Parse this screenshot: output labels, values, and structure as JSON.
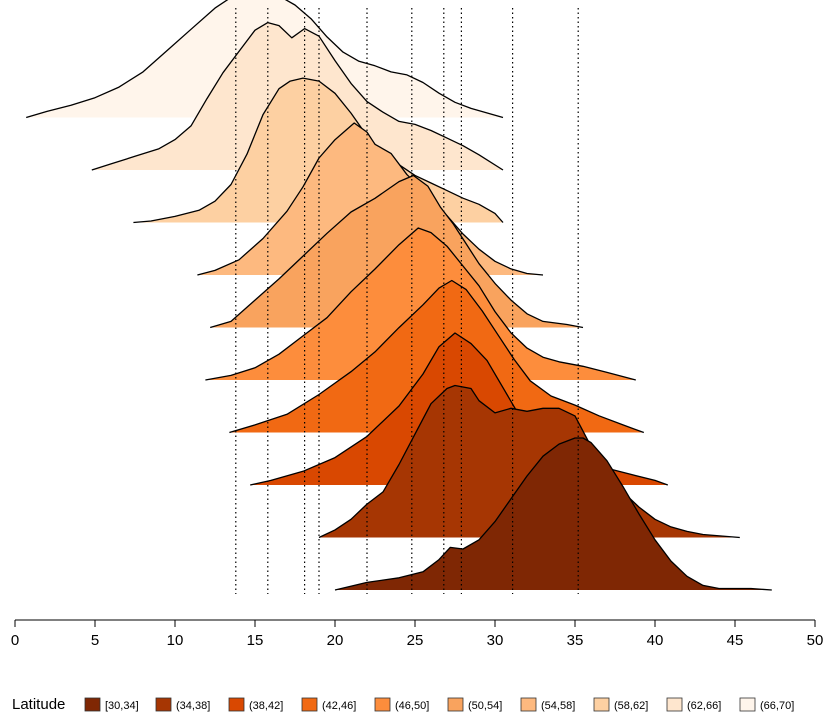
{
  "chart_data": {
    "type": "area",
    "subtype": "ridgeline",
    "title": "",
    "xlabel": "",
    "ylabel": "",
    "xlim": [
      0,
      50
    ],
    "x_ticks": [
      "0",
      "5",
      "10",
      "15",
      "20",
      "25",
      "30",
      "35",
      "40",
      "45",
      "50"
    ],
    "legend": {
      "title": "Latitude",
      "position": "bottom",
      "entries": [
        "[30,34]",
        "(34,38]",
        "(38,42]",
        "(42,46]",
        "(46,50]",
        "(50,54]",
        "(54,58]",
        "(58,62]",
        "(62,66]",
        "(66,70]"
      ]
    },
    "colors": [
      "#7f2704",
      "#a63603",
      "#d94801",
      "#f16913",
      "#fd8d3c",
      "#f9a35e",
      "#fdb97f",
      "#fdd0a2",
      "#fee6ce",
      "#fff5eb"
    ],
    "reference_lines_x": [
      13.8,
      15.8,
      18.1,
      19.0,
      22.0,
      24.8,
      26.8,
      27.9,
      31.1,
      35.2
    ],
    "series": [
      {
        "name": "[30,34]",
        "peak": 35.2,
        "points": [
          [
            20.0,
            0.0
          ],
          [
            22.0,
            0.05
          ],
          [
            24.0,
            0.08
          ],
          [
            25.5,
            0.12
          ],
          [
            26.5,
            0.2
          ],
          [
            27.2,
            0.28
          ],
          [
            28.0,
            0.27
          ],
          [
            29.0,
            0.33
          ],
          [
            30.0,
            0.45
          ],
          [
            31.0,
            0.6
          ],
          [
            32.0,
            0.75
          ],
          [
            33.0,
            0.88
          ],
          [
            34.0,
            0.96
          ],
          [
            35.0,
            1.0
          ],
          [
            35.5,
            1.0
          ],
          [
            36.0,
            0.97
          ],
          [
            37.0,
            0.85
          ],
          [
            38.0,
            0.68
          ],
          [
            39.0,
            0.5
          ],
          [
            40.0,
            0.33
          ],
          [
            41.0,
            0.19
          ],
          [
            42.0,
            0.09
          ],
          [
            43.0,
            0.03
          ],
          [
            44.0,
            0.01
          ],
          [
            45.0,
            0.01
          ],
          [
            46.0,
            0.01
          ],
          [
            47.3,
            0.0
          ]
        ]
      },
      {
        "name": "(34,38]",
        "peak": 27.9,
        "points": [
          [
            19.0,
            0.0
          ],
          [
            20.0,
            0.05
          ],
          [
            21.0,
            0.12
          ],
          [
            22.0,
            0.22
          ],
          [
            23.0,
            0.3
          ],
          [
            24.0,
            0.48
          ],
          [
            25.0,
            0.68
          ],
          [
            26.0,
            0.88
          ],
          [
            27.0,
            0.98
          ],
          [
            27.5,
            1.0
          ],
          [
            28.5,
            0.98
          ],
          [
            29.0,
            0.9
          ],
          [
            30.0,
            0.82
          ],
          [
            31.0,
            0.85
          ],
          [
            32.0,
            0.83
          ],
          [
            33.0,
            0.85
          ],
          [
            34.0,
            0.85
          ],
          [
            35.0,
            0.8
          ],
          [
            36.0,
            0.6
          ],
          [
            37.0,
            0.42
          ],
          [
            38.0,
            0.3
          ],
          [
            39.0,
            0.2
          ],
          [
            40.0,
            0.12
          ],
          [
            41.0,
            0.07
          ],
          [
            42.0,
            0.04
          ],
          [
            43.0,
            0.02
          ],
          [
            45.3,
            0.0
          ]
        ]
      },
      {
        "name": "(38,42]",
        "peak": 27.5,
        "points": [
          [
            14.7,
            0.0
          ],
          [
            16.0,
            0.03
          ],
          [
            18.0,
            0.09
          ],
          [
            20.0,
            0.18
          ],
          [
            22.0,
            0.32
          ],
          [
            24.0,
            0.52
          ],
          [
            25.5,
            0.73
          ],
          [
            26.5,
            0.91
          ],
          [
            27.5,
            1.0
          ],
          [
            28.5,
            0.93
          ],
          [
            29.5,
            0.82
          ],
          [
            30.5,
            0.64
          ],
          [
            31.5,
            0.46
          ],
          [
            32.5,
            0.33
          ],
          [
            33.5,
            0.25
          ],
          [
            34.5,
            0.2
          ],
          [
            35.5,
            0.16
          ],
          [
            37.0,
            0.11
          ],
          [
            38.5,
            0.07
          ],
          [
            40.0,
            0.03
          ],
          [
            40.8,
            0.0
          ]
        ]
      },
      {
        "name": "(42,46]",
        "peak": 27.3,
        "points": [
          [
            13.4,
            0.0
          ],
          [
            15.0,
            0.05
          ],
          [
            17.0,
            0.12
          ],
          [
            19.0,
            0.25
          ],
          [
            21.0,
            0.4
          ],
          [
            22.5,
            0.53
          ],
          [
            24.0,
            0.69
          ],
          [
            25.5,
            0.84
          ],
          [
            26.5,
            0.95
          ],
          [
            27.3,
            1.0
          ],
          [
            28.2,
            0.94
          ],
          [
            29.2,
            0.8
          ],
          [
            30.2,
            0.64
          ],
          [
            31.2,
            0.48
          ],
          [
            32.2,
            0.34
          ],
          [
            33.5,
            0.24
          ],
          [
            35.0,
            0.18
          ],
          [
            36.5,
            0.11
          ],
          [
            38.0,
            0.05
          ],
          [
            39.3,
            0.0
          ]
        ]
      },
      {
        "name": "(46,50]",
        "peak": 25.2,
        "points": [
          [
            11.9,
            0.0
          ],
          [
            13.5,
            0.03
          ],
          [
            15.0,
            0.08
          ],
          [
            16.5,
            0.17
          ],
          [
            18.0,
            0.29
          ],
          [
            19.5,
            0.41
          ],
          [
            21.0,
            0.58
          ],
          [
            22.5,
            0.73
          ],
          [
            24.0,
            0.89
          ],
          [
            25.2,
            1.0
          ],
          [
            26.0,
            0.97
          ],
          [
            27.0,
            0.88
          ],
          [
            28.0,
            0.75
          ],
          [
            29.0,
            0.62
          ],
          [
            30.0,
            0.45
          ],
          [
            31.0,
            0.31
          ],
          [
            32.0,
            0.21
          ],
          [
            33.0,
            0.15
          ],
          [
            34.0,
            0.12
          ],
          [
            35.5,
            0.09
          ],
          [
            37.0,
            0.05
          ],
          [
            38.8,
            0.0
          ]
        ]
      },
      {
        "name": "(50,54]",
        "peak": 24.9,
        "points": [
          [
            12.2,
            0.0
          ],
          [
            13.5,
            0.04
          ],
          [
            15.0,
            0.18
          ],
          [
            16.5,
            0.32
          ],
          [
            18.0,
            0.47
          ],
          [
            19.5,
            0.62
          ],
          [
            21.0,
            0.76
          ],
          [
            22.5,
            0.85
          ],
          [
            24.0,
            0.96
          ],
          [
            24.9,
            1.0
          ],
          [
            25.8,
            0.93
          ],
          [
            26.6,
            0.79
          ],
          [
            27.4,
            0.68
          ],
          [
            28.2,
            0.55
          ],
          [
            29.0,
            0.42
          ],
          [
            30.0,
            0.29
          ],
          [
            31.0,
            0.18
          ],
          [
            32.0,
            0.09
          ],
          [
            33.0,
            0.04
          ],
          [
            34.5,
            0.02
          ],
          [
            35.5,
            0.0
          ]
        ]
      },
      {
        "name": "(54,58]",
        "peak": 21.2,
        "points": [
          [
            11.4,
            0.0
          ],
          [
            12.5,
            0.03
          ],
          [
            14.0,
            0.1
          ],
          [
            15.5,
            0.24
          ],
          [
            17.0,
            0.42
          ],
          [
            18.0,
            0.58
          ],
          [
            19.0,
            0.77
          ],
          [
            20.0,
            0.89
          ],
          [
            21.2,
            1.0
          ],
          [
            22.0,
            0.94
          ],
          [
            22.5,
            0.86
          ],
          [
            23.5,
            0.8
          ],
          [
            24.5,
            0.66
          ],
          [
            25.2,
            0.59
          ],
          [
            26.2,
            0.48
          ],
          [
            27.0,
            0.39
          ],
          [
            28.0,
            0.27
          ],
          [
            29.0,
            0.17
          ],
          [
            30.0,
            0.09
          ],
          [
            31.0,
            0.04
          ],
          [
            32.0,
            0.01
          ],
          [
            33.0,
            0.0
          ]
        ]
      },
      {
        "name": "(58,62]",
        "peak": 18.0,
        "points": [
          [
            7.4,
            0.0
          ],
          [
            8.5,
            0.01
          ],
          [
            10.0,
            0.04
          ],
          [
            11.5,
            0.08
          ],
          [
            12.5,
            0.14
          ],
          [
            13.5,
            0.25
          ],
          [
            14.5,
            0.45
          ],
          [
            15.5,
            0.71
          ],
          [
            16.5,
            0.88
          ],
          [
            17.2,
            0.93
          ],
          [
            18.0,
            0.95
          ],
          [
            19.0,
            0.93
          ],
          [
            20.0,
            0.85
          ],
          [
            21.0,
            0.72
          ],
          [
            22.0,
            0.57
          ],
          [
            23.0,
            0.46
          ],
          [
            24.0,
            0.38
          ],
          [
            25.0,
            0.31
          ],
          [
            26.0,
            0.26
          ],
          [
            27.0,
            0.21
          ],
          [
            28.0,
            0.16
          ],
          [
            29.0,
            0.12
          ],
          [
            30.0,
            0.06
          ],
          [
            30.5,
            0.0
          ]
        ]
      },
      {
        "name": "(62,66]",
        "peak": 15.8,
        "points": [
          [
            4.8,
            0.0
          ],
          [
            6.0,
            0.04
          ],
          [
            7.5,
            0.09
          ],
          [
            9.0,
            0.14
          ],
          [
            10.0,
            0.2
          ],
          [
            11.0,
            0.29
          ],
          [
            12.0,
            0.47
          ],
          [
            13.0,
            0.64
          ],
          [
            14.0,
            0.78
          ],
          [
            15.0,
            0.92
          ],
          [
            15.8,
            0.97
          ],
          [
            16.5,
            0.95
          ],
          [
            17.3,
            0.87
          ],
          [
            18.1,
            0.93
          ],
          [
            19.0,
            0.88
          ],
          [
            20.0,
            0.72
          ],
          [
            21.0,
            0.57
          ],
          [
            22.0,
            0.45
          ],
          [
            23.0,
            0.38
          ],
          [
            24.0,
            0.32
          ],
          [
            25.0,
            0.3
          ],
          [
            26.0,
            0.26
          ],
          [
            27.0,
            0.21
          ],
          [
            28.0,
            0.16
          ],
          [
            29.0,
            0.1
          ],
          [
            30.5,
            0.0
          ]
        ]
      },
      {
        "name": "(66,70]",
        "peak": 14.8,
        "points": [
          [
            0.7,
            0.0
          ],
          [
            2.0,
            0.04
          ],
          [
            3.5,
            0.08
          ],
          [
            5.0,
            0.13
          ],
          [
            6.5,
            0.2
          ],
          [
            8.0,
            0.3
          ],
          [
            9.5,
            0.44
          ],
          [
            11.0,
            0.58
          ],
          [
            12.5,
            0.72
          ],
          [
            13.5,
            0.79
          ],
          [
            14.5,
            0.8
          ],
          [
            15.8,
            0.86
          ],
          [
            16.5,
            0.8
          ],
          [
            17.5,
            0.74
          ],
          [
            18.5,
            0.65
          ],
          [
            19.5,
            0.53
          ],
          [
            20.5,
            0.43
          ],
          [
            21.5,
            0.37
          ],
          [
            22.5,
            0.34
          ],
          [
            23.5,
            0.3
          ],
          [
            24.5,
            0.28
          ],
          [
            25.5,
            0.23
          ],
          [
            26.5,
            0.16
          ],
          [
            27.5,
            0.1
          ],
          [
            28.5,
            0.06
          ],
          [
            30.5,
            0.0
          ]
        ]
      }
    ]
  }
}
